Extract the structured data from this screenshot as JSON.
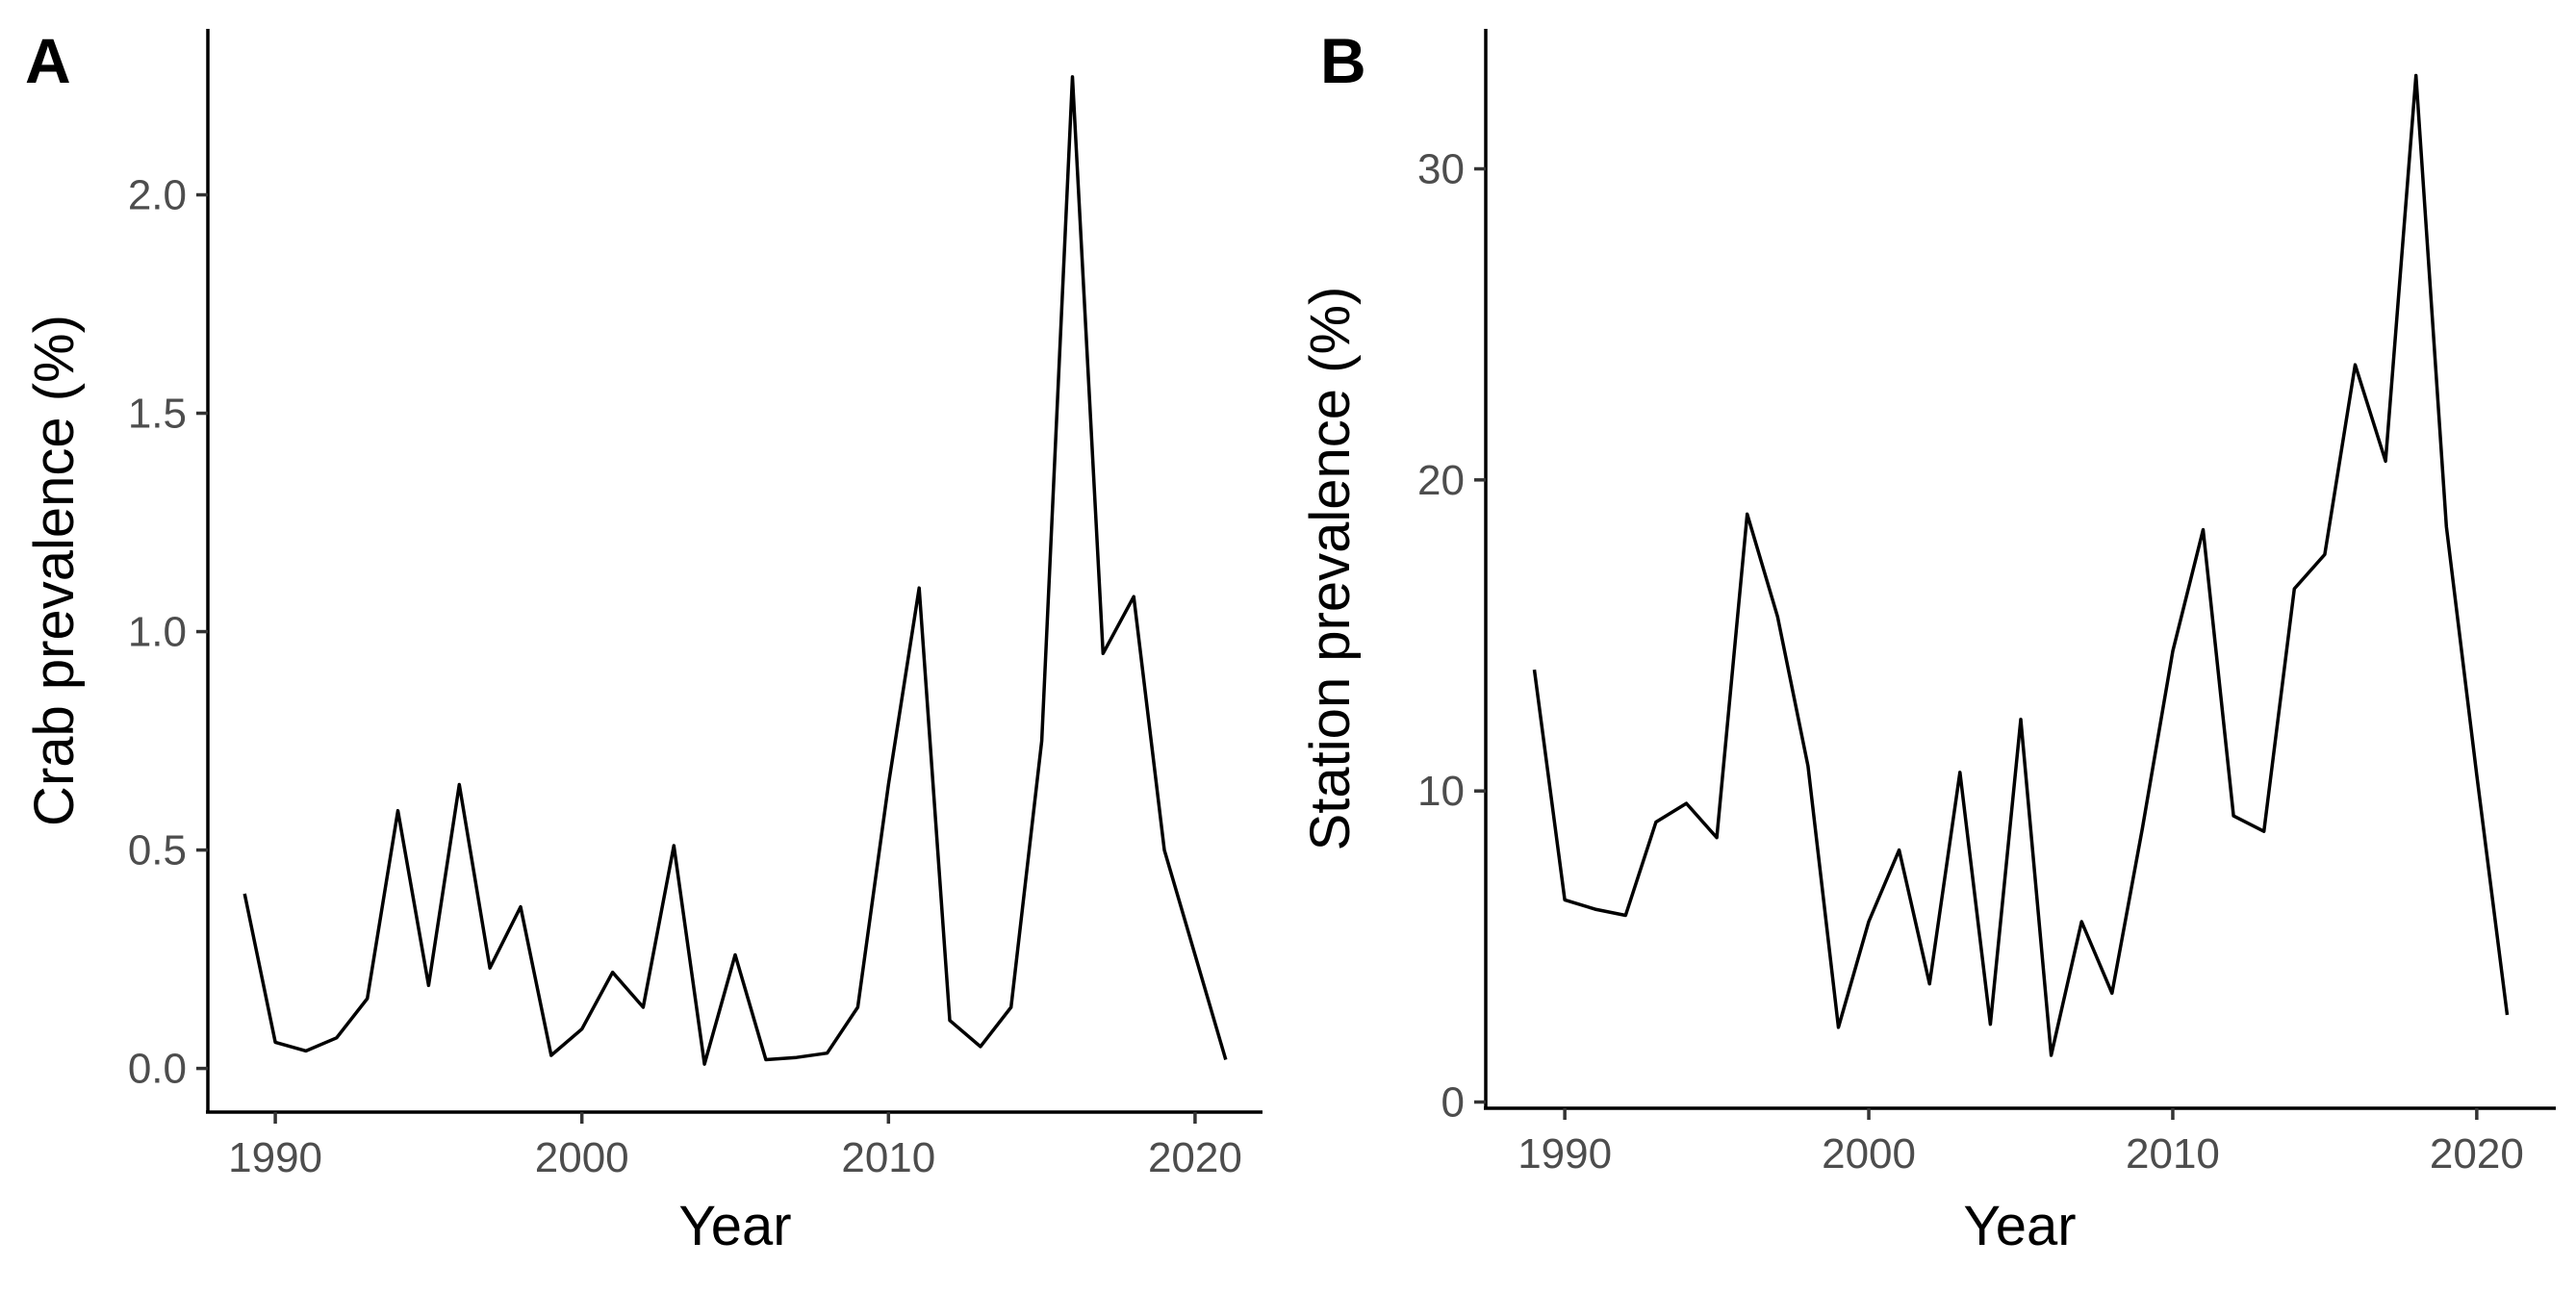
{
  "chart_data": [
    {
      "type": "line",
      "panel": "A",
      "xlabel": "Year",
      "ylabel": "Crab prevalence (%)",
      "xlim": [
        1987.8,
        2022.2
      ],
      "ylim": [
        -0.1,
        2.38
      ],
      "x_ticks": [
        "1990",
        "2000",
        "2010",
        "2020"
      ],
      "y_ticks": [
        "0.0",
        "0.5",
        "1.0",
        "1.5",
        "2.0"
      ],
      "grid": false,
      "series": [
        {
          "x": [
            1989,
            1990,
            1991,
            1992,
            1993,
            1994,
            1995,
            1996,
            1997,
            1998,
            1999,
            2000,
            2001,
            2002,
            2003,
            2004,
            2005,
            2006,
            2007,
            2008,
            2009,
            2010,
            2011,
            2012,
            2013,
            2014,
            2015,
            2016,
            2017,
            2018,
            2019,
            2020,
            2021
          ],
          "y": [
            0.4,
            0.06,
            0.04,
            0.07,
            0.16,
            0.59,
            0.19,
            0.65,
            0.23,
            0.37,
            0.03,
            0.09,
            0.22,
            0.14,
            0.51,
            0.01,
            0.26,
            0.02,
            0.025,
            0.035,
            0.14,
            0.65,
            1.1,
            0.11,
            0.05,
            0.14,
            0.75,
            2.27,
            0.95,
            1.08,
            0.5,
            0.26,
            0.02
          ]
        }
      ]
    },
    {
      "type": "line",
      "panel": "B",
      "xlabel": "Year",
      "ylabel": "Station prevalence (%)",
      "xlim": [
        1987.4,
        2022.6
      ],
      "ylim": [
        -0.2,
        34.5
      ],
      "x_ticks": [
        "1990",
        "2000",
        "2010",
        "2020"
      ],
      "y_ticks": [
        "0",
        "10",
        "20",
        "30"
      ],
      "grid": false,
      "series": [
        {
          "x": [
            1989,
            1990,
            1991,
            1992,
            1993,
            1994,
            1995,
            1996,
            1997,
            1998,
            1999,
            2000,
            2001,
            2002,
            2003,
            2004,
            2005,
            2006,
            2007,
            2008,
            2009,
            2010,
            2011,
            2012,
            2013,
            2014,
            2015,
            2016,
            2017,
            2018,
            2019,
            2020,
            2021
          ],
          "y": [
            13.9,
            6.5,
            6.2,
            6.0,
            9.0,
            9.6,
            8.5,
            18.9,
            15.6,
            10.8,
            2.4,
            5.8,
            8.1,
            3.8,
            10.6,
            2.5,
            12.3,
            1.5,
            5.8,
            3.5,
            8.8,
            14.5,
            18.4,
            9.2,
            8.7,
            16.5,
            17.6,
            23.7,
            20.6,
            33.0,
            18.5,
            10.5,
            2.8
          ]
        }
      ]
    }
  ]
}
